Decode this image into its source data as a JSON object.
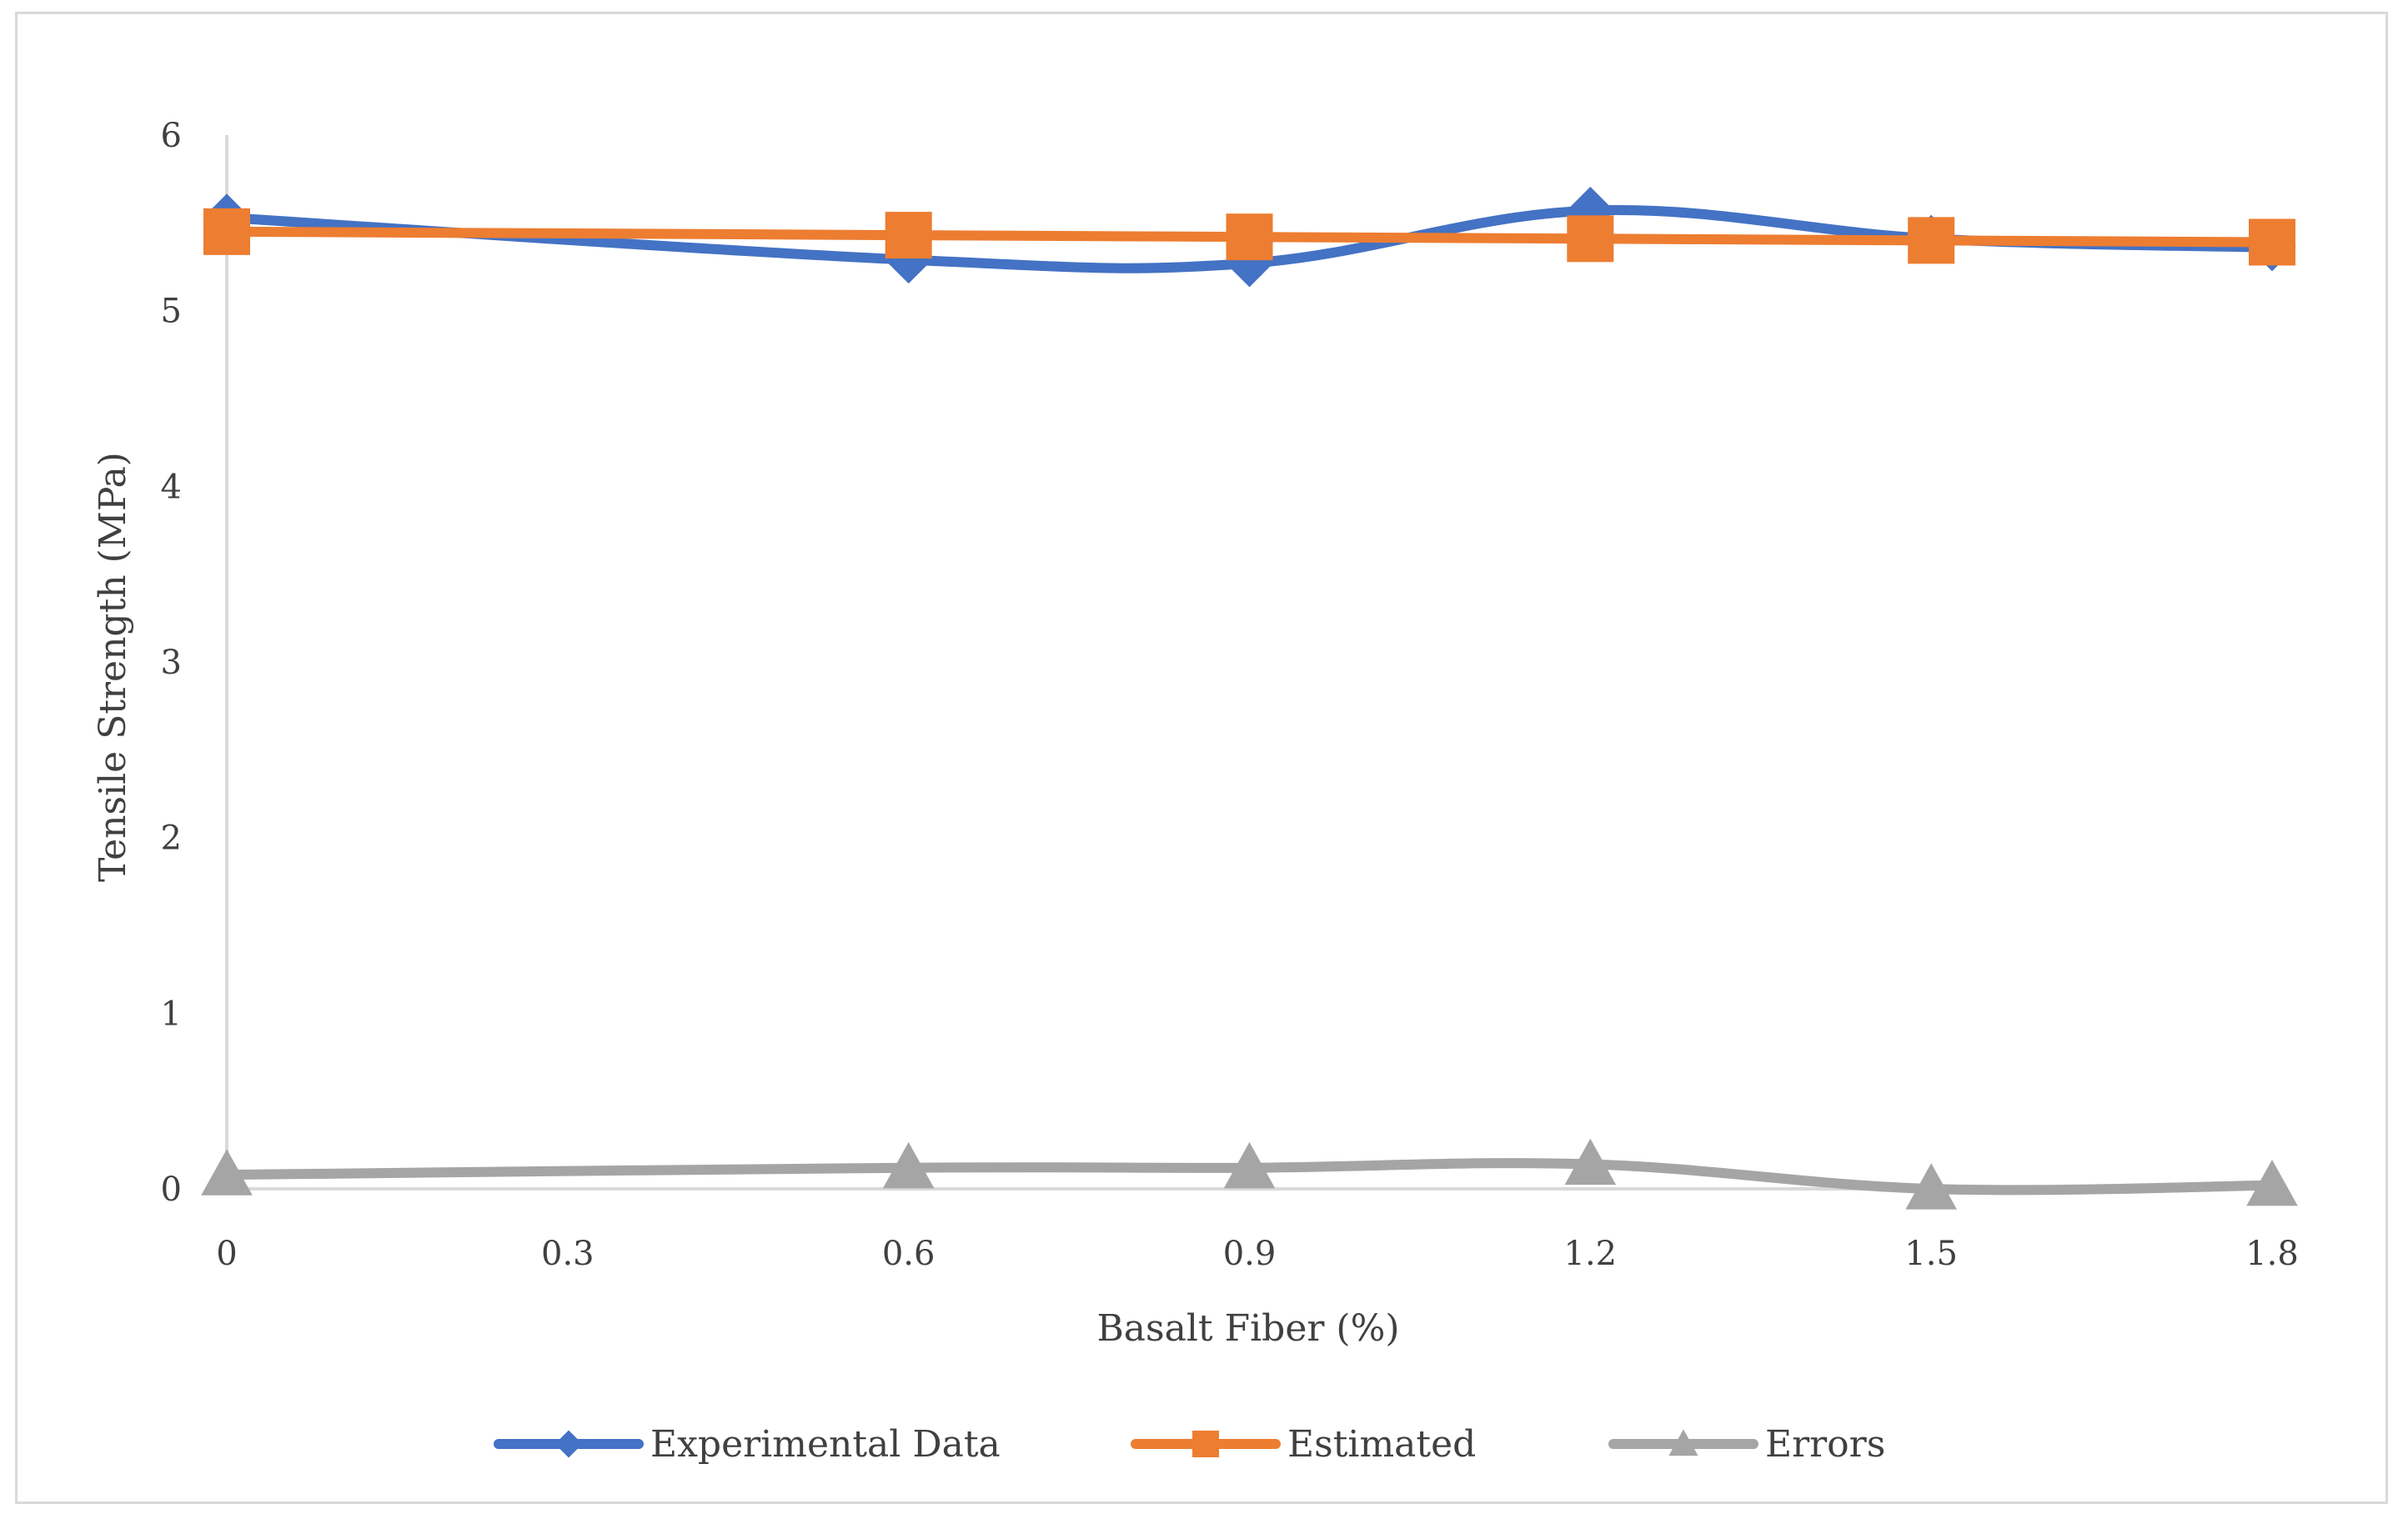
{
  "chart_data": {
    "type": "line",
    "title": "",
    "xlabel": "Basalt Fiber (%)",
    "ylabel": "Tensile Strength (MPa)",
    "x": [
      0,
      0.6,
      0.9,
      1.2,
      1.5,
      1.8
    ],
    "xticks": [
      "0",
      "0.3",
      "0.6",
      "0.9",
      "1.2",
      "1.5",
      "1.8"
    ],
    "xlim": [
      0,
      1.8
    ],
    "yticks": [
      "0",
      "1",
      "2",
      "3",
      "4",
      "5",
      "6"
    ],
    "ylim": [
      0,
      6
    ],
    "grid": false,
    "legend_position": "bottom",
    "series": [
      {
        "name": "Experimental Data",
        "marker": "diamond",
        "color": "#4472c4",
        "values": [
          5.53,
          5.29,
          5.27,
          5.57,
          5.41,
          5.36
        ]
      },
      {
        "name": "Estimated",
        "marker": "square",
        "color": "#ed7d31",
        "values": [
          5.45,
          5.43,
          5.42,
          5.41,
          5.4,
          5.39
        ]
      },
      {
        "name": "Errors",
        "marker": "triangle",
        "color": "#a5a5a5",
        "values": [
          0.08,
          0.12,
          0.12,
          0.14,
          0.0,
          0.02
        ]
      }
    ]
  }
}
